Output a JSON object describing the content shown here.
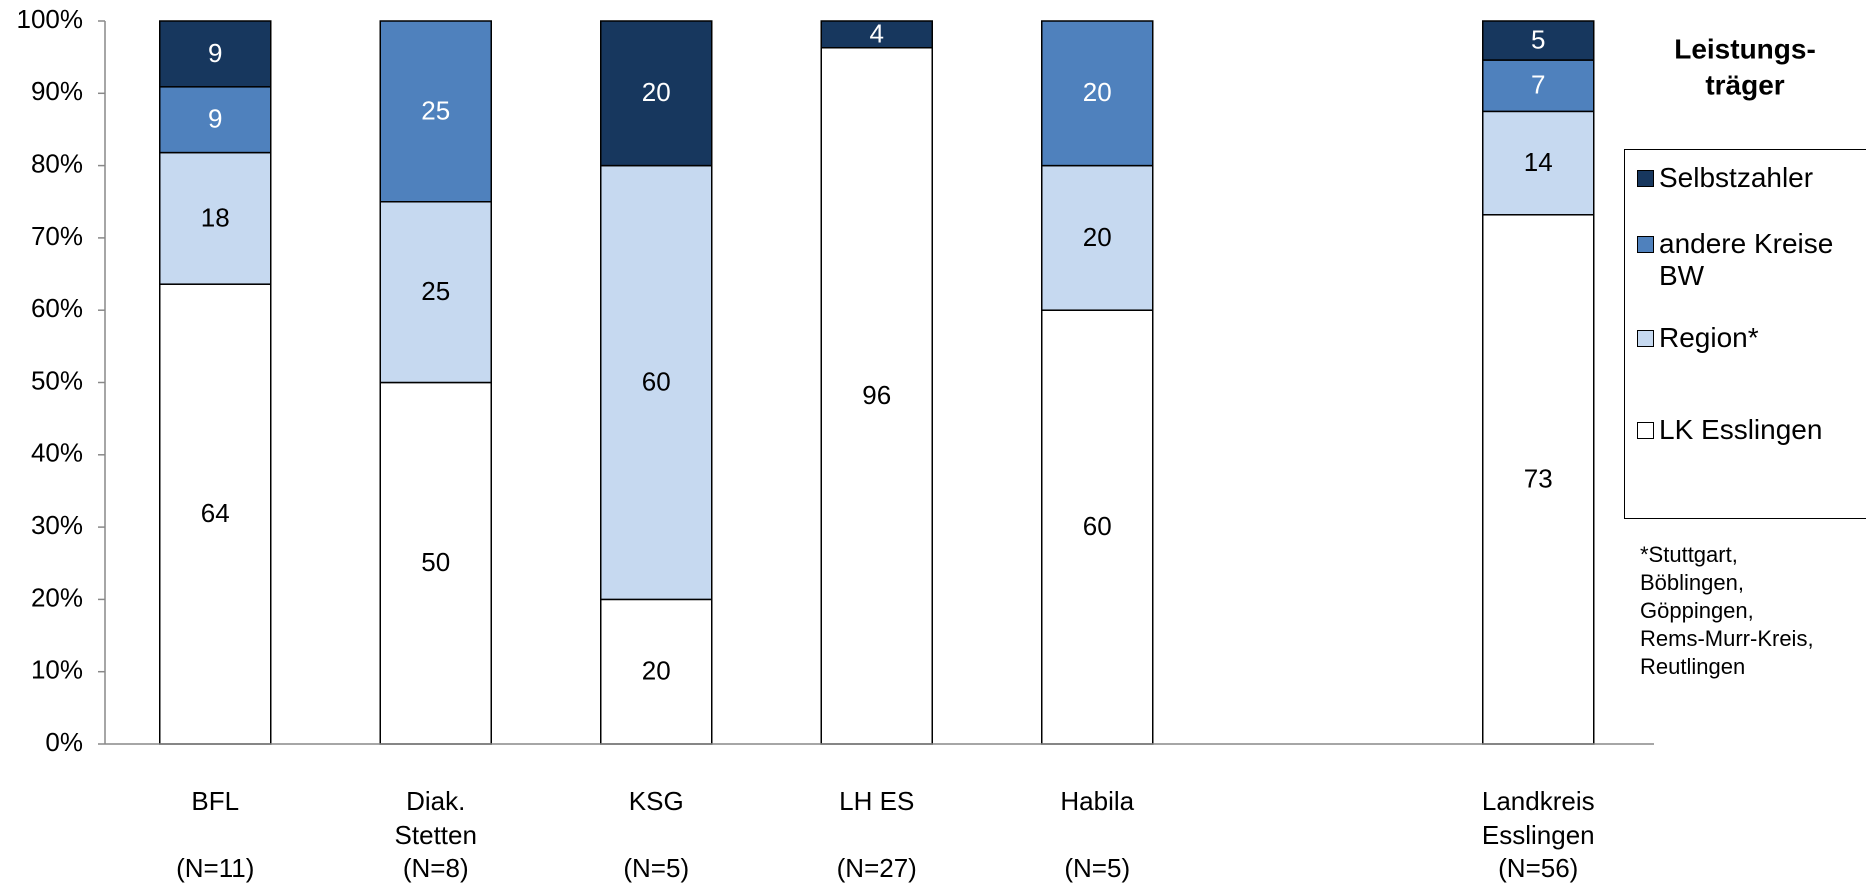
{
  "chart_data": {
    "type": "stacked_bar",
    "categories": [
      [
        "BFL"
      ],
      [
        "Diak.",
        "Stetten"
      ],
      [
        "KSG"
      ],
      [
        "LH ES"
      ],
      [
        "Habila"
      ],
      null,
      [
        "Landkreis",
        "Esslingen"
      ]
    ],
    "sample_sizes": [
      "(N=11)",
      "(N=8)",
      "(N=5)",
      "(N=27)",
      "(N=5)",
      null,
      "(N=56)"
    ],
    "series": [
      {
        "name": "LK Esslingen",
        "color": "#ffffff",
        "label_color": "#000000",
        "values": [
          63.6,
          50,
          20,
          96.3,
          60,
          null,
          73.2
        ],
        "value_labels": [
          "64",
          "50",
          "20",
          "96",
          "60",
          null,
          "73"
        ]
      },
      {
        "name": "Region*",
        "color": "#c6d9f0",
        "label_color": "#000000",
        "values": [
          18.2,
          25,
          60,
          null,
          20,
          null,
          14.3
        ],
        "value_labels": [
          "18",
          "25",
          "60",
          null,
          "20",
          null,
          "14"
        ]
      },
      {
        "name": "andere Kreise BW",
        "color": "#4f81bd",
        "label_color": "#ffffff",
        "values": [
          9.1,
          25,
          null,
          null,
          20,
          null,
          7.1
        ],
        "value_labels": [
          "9",
          "25",
          null,
          null,
          "20",
          null,
          "7"
        ]
      },
      {
        "name": "Selbstzahler",
        "color": "#17375e",
        "label_color": "#ffffff",
        "values": [
          9.1,
          null,
          20,
          3.7,
          null,
          null,
          5.4
        ],
        "value_labels": [
          "9",
          null,
          "20",
          "4",
          null,
          null,
          "5"
        ]
      }
    ],
    "ylim": [
      0,
      100
    ],
    "yticks": [
      {
        "value": 0,
        "label": "0%"
      },
      {
        "value": 10,
        "label": "10%"
      },
      {
        "value": 20,
        "label": "20%"
      },
      {
        "value": 30,
        "label": "30%"
      },
      {
        "value": 40,
        "label": "40%"
      },
      {
        "value": 50,
        "label": "50%"
      },
      {
        "value": 60,
        "label": "60%"
      },
      {
        "value": 70,
        "label": "70%"
      },
      {
        "value": 80,
        "label": "80%"
      },
      {
        "value": 90,
        "label": "90%"
      },
      {
        "value": 100,
        "label": "100%"
      }
    ],
    "legend_title": [
      "Leistungs-",
      "träger"
    ],
    "note": [
      "*Stuttgart,",
      "Böblingen,",
      "Göppingen,",
      "Rems-Murr-Kreis,",
      "Reutlingen"
    ]
  }
}
